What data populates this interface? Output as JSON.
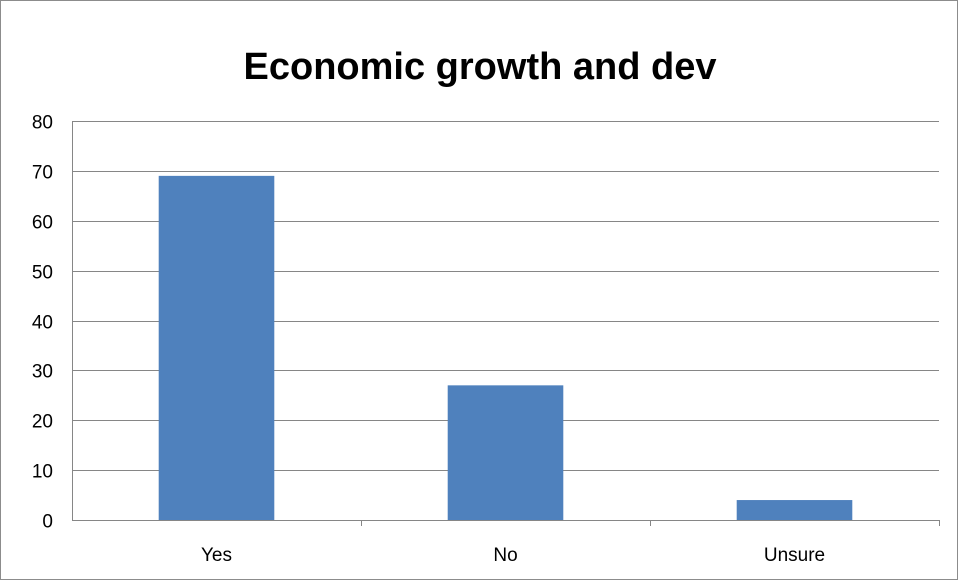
{
  "chart_data": {
    "type": "bar",
    "title": "Economic growth and dev",
    "categories": [
      "Yes",
      "No",
      "Unsure"
    ],
    "values": [
      69,
      27,
      4
    ],
    "ylim": [
      0,
      80
    ],
    "yticks": [
      0,
      10,
      20,
      30,
      40,
      50,
      60,
      70,
      80
    ],
    "grid": true,
    "legend": "none",
    "bar_color": "#4f81bd",
    "grid_color": "#868686"
  }
}
